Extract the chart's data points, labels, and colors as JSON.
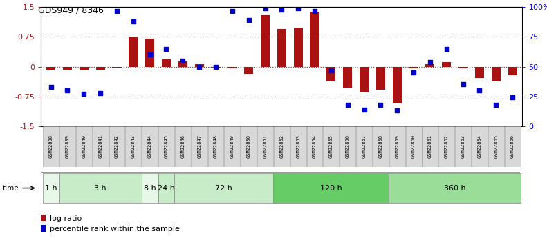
{
  "title": "GDS949 / 8346",
  "samples": [
    "GSM22838",
    "GSM22839",
    "GSM22840",
    "GSM22841",
    "GSM22842",
    "GSM22843",
    "GSM22844",
    "GSM22845",
    "GSM22846",
    "GSM22847",
    "GSM22848",
    "GSM22849",
    "GSM22850",
    "GSM22851",
    "GSM22852",
    "GSM22853",
    "GSM22854",
    "GSM22855",
    "GSM22856",
    "GSM22857",
    "GSM22858",
    "GSM22859",
    "GSM22860",
    "GSM22861",
    "GSM22862",
    "GSM22863",
    "GSM22864",
    "GSM22865",
    "GSM22866"
  ],
  "log_ratio": [
    -0.1,
    -0.08,
    -0.1,
    -0.07,
    -0.03,
    0.75,
    0.7,
    0.18,
    0.14,
    0.06,
    -0.02,
    -0.04,
    -0.18,
    1.3,
    0.95,
    0.98,
    1.38,
    -0.38,
    -0.52,
    -0.65,
    -0.58,
    -0.92,
    -0.05,
    0.07,
    0.12,
    -0.04,
    -0.28,
    -0.38,
    -0.22
  ],
  "percentile": [
    33,
    30,
    27,
    28,
    97,
    88,
    60,
    65,
    55,
    50,
    50,
    97,
    89,
    99,
    98,
    99,
    97,
    47,
    18,
    14,
    18,
    13,
    45,
    54,
    65,
    35,
    30,
    18,
    24
  ],
  "time_groups": [
    {
      "label": "1 h",
      "start": 0,
      "end": 1,
      "color": "#e8f8e8"
    },
    {
      "label": "3 h",
      "start": 1,
      "end": 6,
      "color": "#c8ecc8"
    },
    {
      "label": "8 h",
      "start": 6,
      "end": 7,
      "color": "#e8f8e8"
    },
    {
      "label": "24 h",
      "start": 7,
      "end": 8,
      "color": "#c8ecc8"
    },
    {
      "label": "72 h",
      "start": 8,
      "end": 14,
      "color": "#c8ecc8"
    },
    {
      "label": "120 h",
      "start": 14,
      "end": 21,
      "color": "#66cc66"
    },
    {
      "label": "360 h",
      "start": 21,
      "end": 29,
      "color": "#99dd99"
    }
  ],
  "bar_color": "#aa1111",
  "dot_color": "#0000cc",
  "zero_line_color": "#cc2222",
  "dotted_line_color": "#555555",
  "ylim": [
    -1.5,
    1.5
  ],
  "y_ticks_left": [
    -1.5,
    -0.75,
    0.0,
    0.75,
    1.5
  ],
  "y_ticks_right": [
    0,
    25,
    50,
    75,
    100
  ],
  "right_tick_labels": [
    "0",
    "25",
    "50",
    "75",
    "100%"
  ],
  "dotted_lines": [
    -0.75,
    0.75
  ],
  "legend_bar_label": "log ratio",
  "legend_dot_label": "percentile rank within the sample",
  "sample_box_color": "#d8d8d8",
  "sample_box_edge": "#999999",
  "figsize": [
    7.91,
    3.45
  ],
  "dpi": 100
}
